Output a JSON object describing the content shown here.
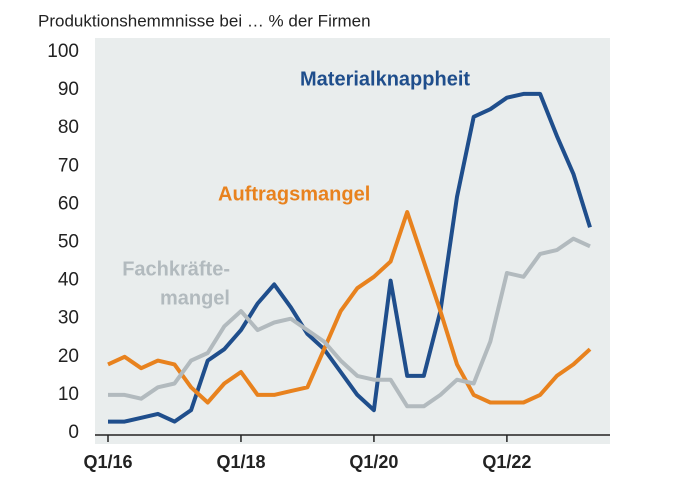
{
  "chart_data": {
    "type": "line",
    "title": "Produktionshemmnisse bei … % der Firmen",
    "categories": [
      "Q1/16",
      null,
      null,
      null,
      null,
      null,
      null,
      null,
      "Q1/18",
      null,
      null,
      null,
      null,
      null,
      null,
      null,
      "Q1/20",
      null,
      null,
      null,
      null,
      null,
      null,
      null,
      "Q1/22",
      null,
      null,
      null,
      null,
      null
    ],
    "series": [
      {
        "label": [
          "Materialknappheit"
        ],
        "color": "#1f4e8c",
        "values": [
          3,
          3,
          4,
          5,
          3,
          6,
          19,
          22,
          27,
          34,
          39,
          33,
          26,
          22,
          16,
          10,
          6,
          40,
          15,
          15,
          32,
          62,
          83,
          85,
          88,
          89,
          89,
          78,
          68,
          54
        ]
      },
      {
        "label": [
          "Auftragsmangel"
        ],
        "color": "#e8821e",
        "values": [
          18,
          20,
          17,
          19,
          18,
          12,
          8,
          13,
          16,
          10,
          10,
          11,
          12,
          22,
          32,
          38,
          41,
          45,
          58,
          45,
          32,
          18,
          10,
          8,
          8,
          8,
          10,
          15,
          18,
          22
        ]
      },
      {
        "label": [
          "Fachkräfte-",
          "mangel"
        ],
        "color": "#b2babe",
        "values": [
          10,
          10,
          9,
          12,
          13,
          19,
          21,
          28,
          32,
          27,
          29,
          30,
          27,
          24,
          19,
          15,
          14,
          14,
          7,
          7,
          10,
          14,
          13,
          24,
          42,
          41,
          47,
          48,
          51,
          49
        ]
      }
    ],
    "ylim": [
      0,
      100
    ],
    "yticks": [
      0,
      10,
      20,
      30,
      40,
      50,
      60,
      70,
      80,
      90,
      100
    ]
  }
}
